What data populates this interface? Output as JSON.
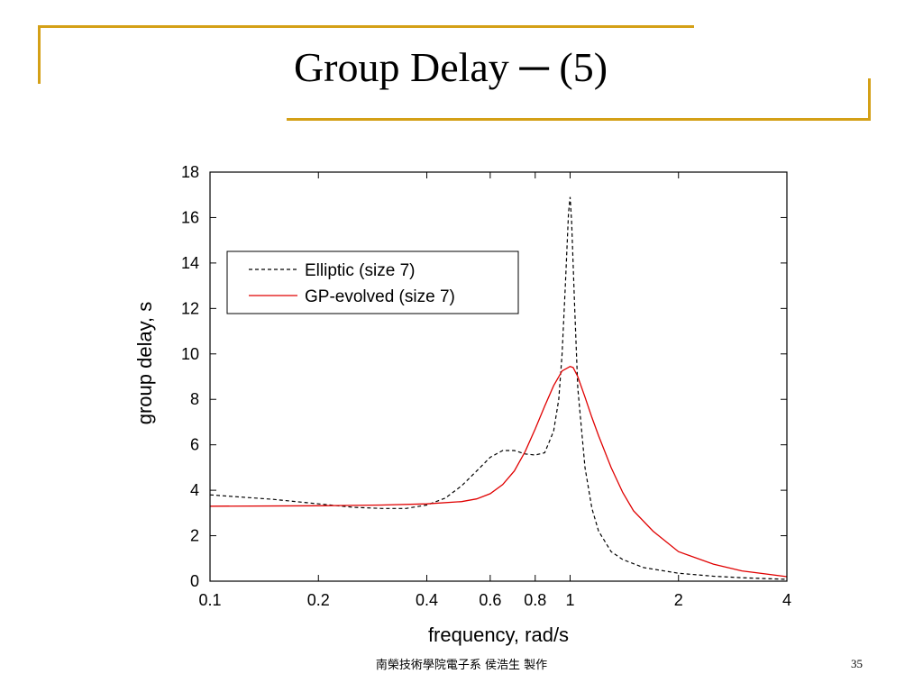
{
  "slide": {
    "title": "Group Delay ─ (5)",
    "footer": "南榮技術學院電子系  侯浩生  製作",
    "page_number": "35",
    "accent_color": "#d4a017"
  },
  "chart_data": {
    "type": "line",
    "title": "",
    "xlabel": "frequency, rad/s",
    "ylabel": "group delay, s",
    "x_scale": "log",
    "xlim": [
      0.1,
      4
    ],
    "ylim": [
      0,
      18
    ],
    "x_ticks": [
      {
        "value": 0.1,
        "label": "0.1"
      },
      {
        "value": 0.2,
        "label": "0.2"
      },
      {
        "value": 0.4,
        "label": "0.4"
      },
      {
        "value": 0.6,
        "label": "0.6"
      },
      {
        "value": 0.8,
        "label": "0.8"
      },
      {
        "value": 1,
        "label": "1"
      },
      {
        "value": 2,
        "label": "2"
      },
      {
        "value": 4,
        "label": "4"
      }
    ],
    "y_ticks": [
      {
        "value": 0,
        "label": "0"
      },
      {
        "value": 2,
        "label": "2"
      },
      {
        "value": 4,
        "label": "4"
      },
      {
        "value": 6,
        "label": "6"
      },
      {
        "value": 8,
        "label": "8"
      },
      {
        "value": 10,
        "label": "10"
      },
      {
        "value": 12,
        "label": "12"
      },
      {
        "value": 14,
        "label": "14"
      },
      {
        "value": 16,
        "label": "16"
      },
      {
        "value": 18,
        "label": "18"
      }
    ],
    "grid": false,
    "legend_position": "top-left",
    "series": [
      {
        "name": "Elliptic (size 7)",
        "color": "#000000",
        "style": "dashed",
        "x": [
          0.1,
          0.15,
          0.2,
          0.25,
          0.3,
          0.35,
          0.4,
          0.45,
          0.5,
          0.55,
          0.6,
          0.65,
          0.7,
          0.75,
          0.8,
          0.85,
          0.9,
          0.93,
          0.95,
          0.97,
          0.99,
          1.0,
          1.01,
          1.03,
          1.05,
          1.1,
          1.15,
          1.2,
          1.3,
          1.4,
          1.6,
          2.0,
          2.5,
          3.0,
          4.0
        ],
        "y": [
          3.8,
          3.6,
          3.4,
          3.25,
          3.2,
          3.2,
          3.35,
          3.65,
          4.2,
          4.85,
          5.45,
          5.75,
          5.75,
          5.6,
          5.55,
          5.65,
          6.6,
          8.0,
          10.0,
          13.0,
          16.2,
          16.9,
          15.8,
          12.0,
          8.5,
          5.0,
          3.2,
          2.2,
          1.3,
          0.95,
          0.6,
          0.35,
          0.22,
          0.15,
          0.08
        ]
      },
      {
        "name": "GP-evolved (size 7)",
        "color": "#e00000",
        "style": "solid",
        "x": [
          0.1,
          0.2,
          0.3,
          0.4,
          0.5,
          0.55,
          0.6,
          0.65,
          0.7,
          0.75,
          0.8,
          0.85,
          0.9,
          0.95,
          1.0,
          1.02,
          1.05,
          1.1,
          1.15,
          1.2,
          1.3,
          1.4,
          1.5,
          1.7,
          2.0,
          2.5,
          3.0,
          4.0
        ],
        "y": [
          3.3,
          3.32,
          3.35,
          3.4,
          3.5,
          3.62,
          3.85,
          4.25,
          4.85,
          5.7,
          6.7,
          7.7,
          8.6,
          9.25,
          9.45,
          9.4,
          9.0,
          8.1,
          7.2,
          6.4,
          5.0,
          3.9,
          3.1,
          2.2,
          1.3,
          0.75,
          0.45,
          0.2
        ]
      }
    ]
  }
}
